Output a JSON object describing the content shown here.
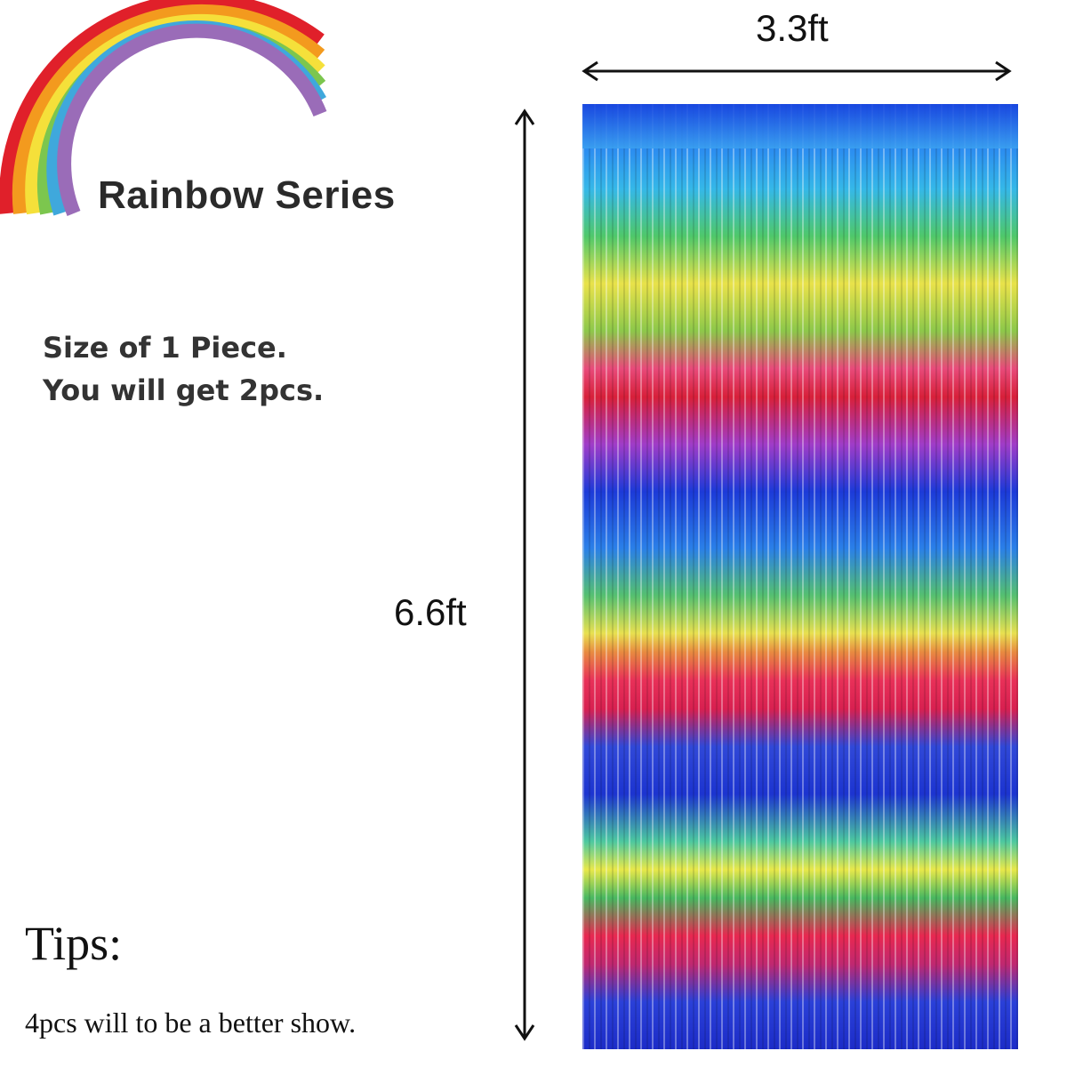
{
  "title": "Rainbow Series",
  "size_line1": "Size of  1 Piece.",
  "size_line2": "You will get 2pcs.",
  "width_label": "3.3ft",
  "height_label": "6.6ft",
  "tips_heading": "Tips:",
  "tips_text": "4pcs will to be a better show.",
  "rainbow_colors": [
    "#e0202a",
    "#f39a1e",
    "#f5e03a",
    "#7cc64e",
    "#3fa8dc",
    "#9a6cb8"
  ]
}
